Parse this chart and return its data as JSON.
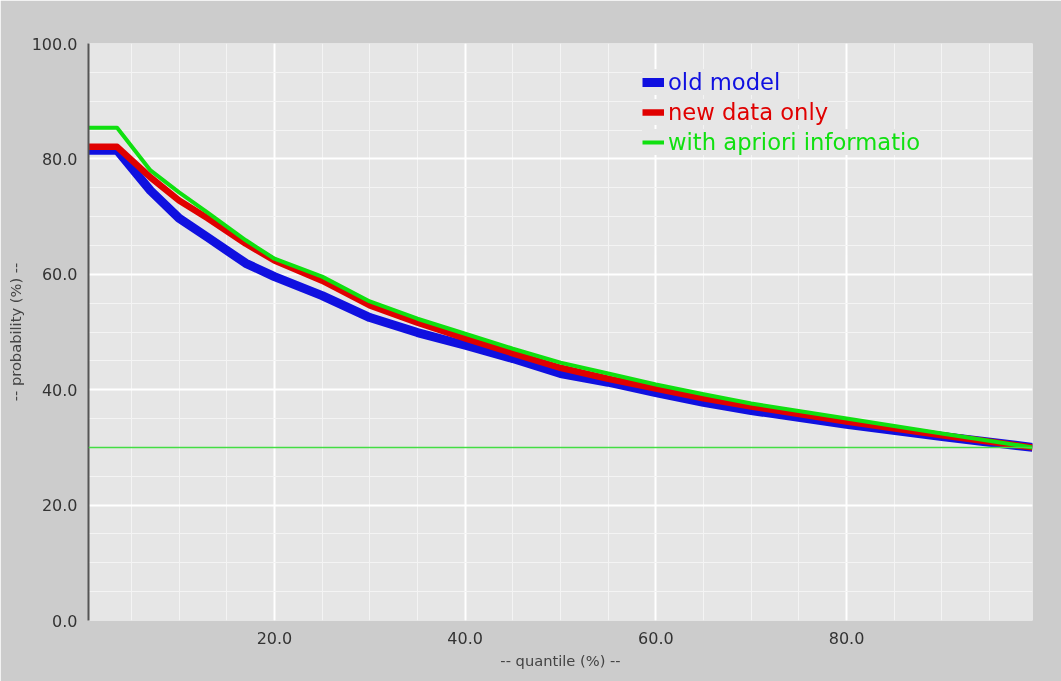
{
  "chart_data": {
    "type": "line",
    "xlabel": "-- quantile (%) --",
    "ylabel": "-- probability (%) --",
    "x": [
      0.5,
      3.5,
      7,
      10,
      13,
      17,
      20,
      25,
      30,
      35,
      40,
      45,
      50,
      55,
      60,
      65,
      70,
      80,
      90,
      99.5
    ],
    "series": [
      {
        "name": "old model",
        "color": "#1010e0",
        "values": [
          81.5,
          81.5,
          74.5,
          69.7,
          66.4,
          61.9,
          59.6,
          56.3,
          52.5,
          49.9,
          47.7,
          45.4,
          42.8,
          41.3,
          39.5,
          37.8,
          36.4,
          34.0,
          31.9,
          30.0
        ]
      },
      {
        "name": "new data only",
        "color": "#e00000",
        "values": [
          82.1,
          82.1,
          76.8,
          72.8,
          69.7,
          65.3,
          62.4,
          58.9,
          54.6,
          51.6,
          48.9,
          46.3,
          43.8,
          41.9,
          40.2,
          38.5,
          37.1,
          34.5,
          32.1,
          30.0
        ]
      },
      {
        "name": "with apriori informatio",
        "color": "#10e010",
        "values": [
          85.4,
          85.4,
          78.0,
          74.2,
          70.7,
          65.9,
          62.7,
          59.6,
          55.3,
          52.3,
          49.7,
          47.1,
          44.7,
          42.8,
          40.9,
          39.2,
          37.6,
          35.0,
          32.4,
          30.0
        ]
      }
    ],
    "xlim": [
      0.5,
      99.5
    ],
    "ylim": [
      0,
      100
    ],
    "xticks": [
      {
        "value": 20,
        "label": "20.0"
      },
      {
        "value": 40,
        "label": "40.0"
      },
      {
        "value": 60,
        "label": "60.0"
      },
      {
        "value": 80,
        "label": "80.0"
      }
    ],
    "yticks": [
      {
        "value": 0,
        "label": "0.0"
      },
      {
        "value": 20,
        "label": "20.0"
      },
      {
        "value": 40,
        "label": "40.0"
      },
      {
        "value": 60,
        "label": "60.0"
      },
      {
        "value": 80,
        "label": "80.0"
      },
      {
        "value": 100,
        "label": "100.0"
      }
    ],
    "ref_lines": [
      {
        "axis": "y",
        "value": 30,
        "color": "#44dd44"
      }
    ],
    "grid": true,
    "legend": "top right",
    "marker": "none",
    "line_style": "solid"
  }
}
